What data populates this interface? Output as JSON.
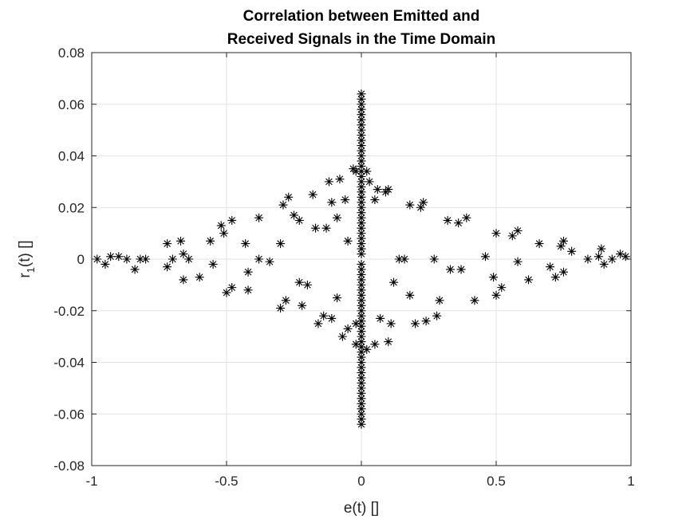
{
  "chart_data": {
    "type": "scatter",
    "title_lines": [
      "Correlation between Emitted and",
      "Received Signals in the Time Domain"
    ],
    "xlabel": "e(t) []",
    "ylabel": {
      "base": "r",
      "subscript": "1",
      "rest": "(t) []"
    },
    "xlim": [
      -1,
      1
    ],
    "ylim": [
      -0.08,
      0.08
    ],
    "xticks": [
      -1,
      -0.5,
      0,
      0.5,
      1
    ],
    "xtick_labels": [
      "-1",
      "-0.5",
      "0",
      "0.5",
      "1"
    ],
    "yticks": [
      -0.08,
      -0.06,
      -0.04,
      -0.02,
      0,
      0.02,
      0.04,
      0.06,
      0.08
    ],
    "ytick_labels": [
      "-0.08",
      "-0.06",
      "-0.04",
      "-0.02",
      "0",
      "0.02",
      "0.04",
      "0.06",
      "0.08"
    ],
    "grid": true,
    "marker": "asterisk",
    "marker_color": "#000000",
    "series": [
      {
        "points": [
          [
            0.0,
            0.064
          ],
          [
            0.0,
            0.062
          ],
          [
            0.0,
            0.06
          ],
          [
            0.0,
            0.058
          ],
          [
            0.0,
            0.056
          ],
          [
            0.0,
            0.054
          ],
          [
            0.0,
            0.052
          ],
          [
            0.0,
            0.05
          ],
          [
            0.0,
            0.048
          ],
          [
            0.0,
            0.046
          ],
          [
            0.0,
            0.044
          ],
          [
            0.0,
            0.042
          ],
          [
            0.0,
            0.04
          ],
          [
            0.0,
            0.038
          ],
          [
            0.0,
            0.036
          ],
          [
            0.0,
            0.034
          ],
          [
            0.0,
            0.032
          ],
          [
            0.0,
            0.03
          ],
          [
            0.0,
            0.028
          ],
          [
            0.0,
            0.026
          ],
          [
            0.0,
            0.024
          ],
          [
            0.0,
            0.022
          ],
          [
            0.0,
            0.02
          ],
          [
            0.0,
            0.018
          ],
          [
            0.0,
            0.016
          ],
          [
            0.0,
            0.014
          ],
          [
            0.0,
            0.012
          ],
          [
            0.0,
            0.01
          ],
          [
            0.0,
            0.008
          ],
          [
            0.0,
            0.006
          ],
          [
            0.0,
            0.004
          ],
          [
            0.0,
            0.002
          ],
          [
            0.0,
            -0.002
          ],
          [
            0.0,
            -0.004
          ],
          [
            0.0,
            -0.006
          ],
          [
            0.0,
            -0.008
          ],
          [
            0.0,
            -0.01
          ],
          [
            0.0,
            -0.012
          ],
          [
            0.0,
            -0.014
          ],
          [
            0.0,
            -0.016
          ],
          [
            0.0,
            -0.018
          ],
          [
            0.0,
            -0.02
          ],
          [
            0.0,
            -0.022
          ],
          [
            0.0,
            -0.024
          ],
          [
            0.0,
            -0.026
          ],
          [
            0.0,
            -0.028
          ],
          [
            0.0,
            -0.03
          ],
          [
            0.0,
            -0.032
          ],
          [
            0.0,
            -0.034
          ],
          [
            0.0,
            -0.036
          ],
          [
            0.0,
            -0.038
          ],
          [
            0.0,
            -0.04
          ],
          [
            0.0,
            -0.042
          ],
          [
            0.0,
            -0.044
          ],
          [
            0.0,
            -0.046
          ],
          [
            0.0,
            -0.048
          ],
          [
            0.0,
            -0.05
          ],
          [
            0.0,
            -0.052
          ],
          [
            0.0,
            -0.054
          ],
          [
            0.0,
            -0.056
          ],
          [
            0.0,
            -0.058
          ],
          [
            0.0,
            -0.06
          ],
          [
            0.0,
            -0.062
          ],
          [
            0.0,
            -0.064
          ],
          [
            -0.98,
            0.0
          ],
          [
            -0.95,
            -0.002
          ],
          [
            -0.93,
            0.001
          ],
          [
            -0.9,
            0.001
          ],
          [
            -0.87,
            0.0
          ],
          [
            -0.84,
            -0.004
          ],
          [
            -0.82,
            0.0
          ],
          [
            -0.8,
            0.0
          ],
          [
            -0.72,
            0.006
          ],
          [
            -0.72,
            -0.003
          ],
          [
            -0.7,
            0.0
          ],
          [
            -0.67,
            0.007
          ],
          [
            -0.66,
            0.002
          ],
          [
            -0.66,
            -0.008
          ],
          [
            -0.64,
            0.0
          ],
          [
            -0.6,
            -0.007
          ],
          [
            -0.56,
            0.007
          ],
          [
            -0.55,
            -0.002
          ],
          [
            -0.52,
            0.013
          ],
          [
            -0.51,
            0.01
          ],
          [
            -0.5,
            -0.013
          ],
          [
            -0.48,
            0.015
          ],
          [
            -0.48,
            -0.011
          ],
          [
            -0.43,
            0.006
          ],
          [
            -0.42,
            -0.005
          ],
          [
            -0.42,
            -0.012
          ],
          [
            -0.38,
            0.016
          ],
          [
            -0.38,
            0.0
          ],
          [
            -0.34,
            -0.001
          ],
          [
            -0.3,
            0.006
          ],
          [
            -0.3,
            -0.019
          ],
          [
            -0.29,
            0.021
          ],
          [
            -0.28,
            -0.016
          ],
          [
            -0.27,
            0.024
          ],
          [
            -0.25,
            0.017
          ],
          [
            -0.23,
            0.015
          ],
          [
            -0.23,
            -0.009
          ],
          [
            -0.22,
            -0.018
          ],
          [
            -0.2,
            -0.01
          ],
          [
            -0.18,
            0.025
          ],
          [
            -0.17,
            0.012
          ],
          [
            -0.16,
            -0.025
          ],
          [
            -0.14,
            -0.022
          ],
          [
            -0.13,
            0.012
          ],
          [
            -0.12,
            0.03
          ],
          [
            -0.11,
            0.022
          ],
          [
            -0.11,
            -0.023
          ],
          [
            -0.09,
            0.016
          ],
          [
            -0.09,
            -0.015
          ],
          [
            -0.08,
            0.031
          ],
          [
            -0.07,
            -0.03
          ],
          [
            -0.06,
            0.023
          ],
          [
            -0.05,
            -0.027
          ],
          [
            -0.05,
            0.007
          ],
          [
            -0.03,
            0.035
          ],
          [
            -0.02,
            0.034
          ],
          [
            -0.02,
            -0.033
          ],
          [
            -0.02,
            -0.025
          ],
          [
            0.02,
            0.034
          ],
          [
            0.02,
            -0.035
          ],
          [
            0.03,
            0.03
          ],
          [
            0.05,
            0.023
          ],
          [
            0.05,
            -0.033
          ],
          [
            0.06,
            0.027
          ],
          [
            0.07,
            -0.023
          ],
          [
            0.09,
            0.026
          ],
          [
            0.1,
            0.027
          ],
          [
            0.1,
            -0.032
          ],
          [
            0.11,
            -0.025
          ],
          [
            0.12,
            -0.009
          ],
          [
            0.14,
            0.0
          ],
          [
            0.16,
            0.0
          ],
          [
            0.18,
            0.021
          ],
          [
            0.18,
            -0.014
          ],
          [
            0.2,
            -0.025
          ],
          [
            0.22,
            0.02
          ],
          [
            0.23,
            0.022
          ],
          [
            0.24,
            -0.024
          ],
          [
            0.27,
            0.0
          ],
          [
            0.28,
            -0.022
          ],
          [
            0.29,
            -0.016
          ],
          [
            0.32,
            0.015
          ],
          [
            0.33,
            -0.004
          ],
          [
            0.36,
            0.014
          ],
          [
            0.37,
            -0.004
          ],
          [
            0.39,
            0.016
          ],
          [
            0.42,
            -0.016
          ],
          [
            0.46,
            0.001
          ],
          [
            0.49,
            -0.007
          ],
          [
            0.5,
            0.01
          ],
          [
            0.5,
            -0.014
          ],
          [
            0.52,
            -0.011
          ],
          [
            0.56,
            0.009
          ],
          [
            0.58,
            0.011
          ],
          [
            0.58,
            -0.001
          ],
          [
            0.62,
            -0.008
          ],
          [
            0.66,
            0.006
          ],
          [
            0.7,
            -0.003
          ],
          [
            0.72,
            -0.007
          ],
          [
            0.74,
            0.005
          ],
          [
            0.75,
            0.007
          ],
          [
            0.75,
            -0.005
          ],
          [
            0.78,
            0.003
          ],
          [
            0.84,
            0.0
          ],
          [
            0.88,
            0.001
          ],
          [
            0.89,
            0.004
          ],
          [
            0.9,
            -0.002
          ],
          [
            0.93,
            0.0
          ],
          [
            0.96,
            0.002
          ],
          [
            0.98,
            0.001
          ]
        ]
      }
    ]
  }
}
